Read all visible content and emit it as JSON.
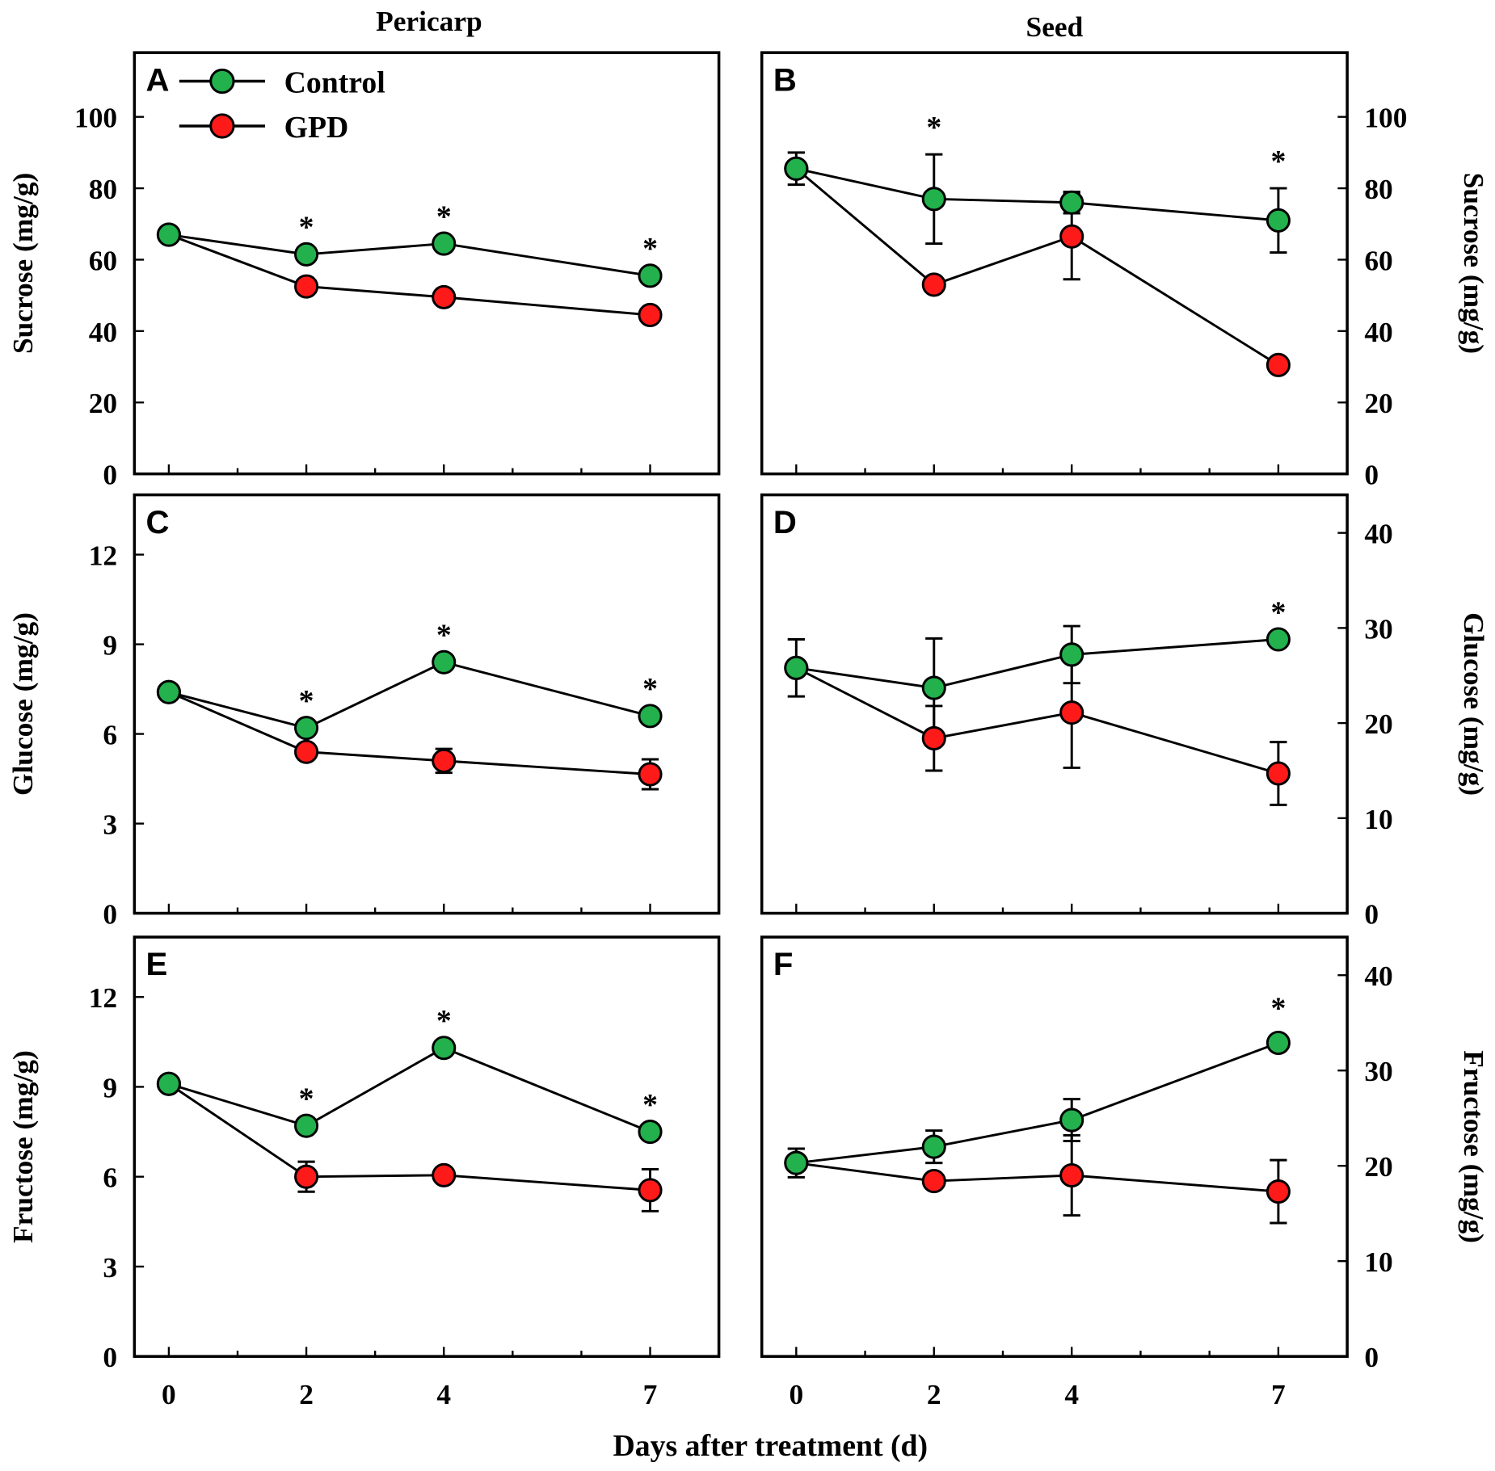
{
  "chart_data": {
    "type": "line",
    "column_titles": [
      "Pericarp",
      "Seed"
    ],
    "xlabel": "Days after treatment (d)",
    "x": [
      0,
      2,
      4,
      7
    ],
    "x_tick_labels": [
      "0",
      "2",
      "4",
      "7"
    ],
    "xlim": [
      -0.5,
      8
    ],
    "legend": {
      "placement": "top-left of panel A",
      "entries": [
        {
          "name": "Control",
          "color": "#22b14c"
        },
        {
          "name": "GPD",
          "color": "#ff1a1a"
        }
      ]
    },
    "panels": [
      {
        "letter": "A",
        "ylabel": "Sucrose (mg/g)",
        "ylim": [
          0,
          118
        ],
        "yticks": [
          0,
          20,
          40,
          60,
          80,
          100
        ],
        "series": [
          {
            "name": "Control",
            "values": [
              67,
              61.5,
              64.5,
              55.5
            ],
            "err": [
              0,
              0,
              0,
              0
            ]
          },
          {
            "name": "GPD",
            "values": [
              67,
              52.5,
              49.5,
              44.5
            ],
            "err": [
              0,
              0,
              0,
              0
            ]
          }
        ],
        "significance": [
          2,
          4,
          7
        ]
      },
      {
        "letter": "B",
        "ylabel": "Sucrose (mg/g)",
        "ylim": [
          0,
          118
        ],
        "yticks": [
          0,
          20,
          40,
          60,
          80,
          100
        ],
        "series": [
          {
            "name": "Control",
            "values": [
              85.5,
              77,
              76,
              71
            ],
            "err": [
              0,
              12.5,
              3,
              9
            ]
          },
          {
            "name": "GPD",
            "values": [
              85.5,
              53,
              66.5,
              30.5
            ],
            "err": [
              4.5,
              0,
              12,
              0
            ]
          }
        ],
        "significance": [
          2,
          7
        ]
      },
      {
        "letter": "C",
        "ylabel": "Glucose (mg/g)",
        "ylim": [
          0,
          14
        ],
        "yticks": [
          0,
          3,
          6,
          9,
          12
        ],
        "series": [
          {
            "name": "Control",
            "values": [
              7.4,
              6.2,
              8.4,
              6.6
            ],
            "err": [
              0,
              0,
              0,
              0
            ]
          },
          {
            "name": "GPD",
            "values": [
              7.4,
              5.4,
              5.1,
              4.65
            ],
            "err": [
              0,
              0,
              0.4,
              0.5
            ]
          }
        ],
        "significance": [
          2,
          4,
          7
        ]
      },
      {
        "letter": "D",
        "ylabel": "Glucose (mg/g)",
        "ylim": [
          0,
          44
        ],
        "yticks": [
          0,
          10,
          20,
          30,
          40
        ],
        "series": [
          {
            "name": "Control",
            "values": [
              25.8,
              23.7,
              27.2,
              28.8
            ],
            "err": [
              0,
              5.2,
              3,
              0
            ]
          },
          {
            "name": "GPD",
            "values": [
              25.8,
              18.4,
              21.1,
              14.7
            ],
            "err": [
              3,
              3.4,
              5.8,
              3.3
            ]
          }
        ],
        "significance": [
          7
        ]
      },
      {
        "letter": "E",
        "ylabel": "Fructose (mg/g)",
        "ylim": [
          0,
          14
        ],
        "yticks": [
          0,
          3,
          6,
          9,
          12
        ],
        "series": [
          {
            "name": "Control",
            "values": [
              9.1,
              7.7,
              10.3,
              7.5
            ],
            "err": [
              0,
              0,
              0,
              0
            ]
          },
          {
            "name": "GPD",
            "values": [
              9.1,
              6.0,
              6.05,
              5.55
            ],
            "err": [
              0,
              0.5,
              0,
              0.7
            ]
          }
        ],
        "significance": [
          2,
          4,
          7
        ]
      },
      {
        "letter": "F",
        "ylabel": "Fructose (mg/g)",
        "ylim": [
          0,
          44
        ],
        "yticks": [
          0,
          10,
          20,
          30,
          40
        ],
        "series": [
          {
            "name": "Control",
            "values": [
              20.3,
              22,
              24.8,
              32.9
            ],
            "err": [
              0,
              1.7,
              2.2,
              0.8
            ]
          },
          {
            "name": "GPD",
            "values": [
              20.3,
              18.4,
              19,
              17.3
            ],
            "err": [
              1.5,
              0.7,
              4.2,
              3.3
            ]
          }
        ],
        "significance": [
          7
        ]
      }
    ],
    "significance_marker": "*"
  }
}
